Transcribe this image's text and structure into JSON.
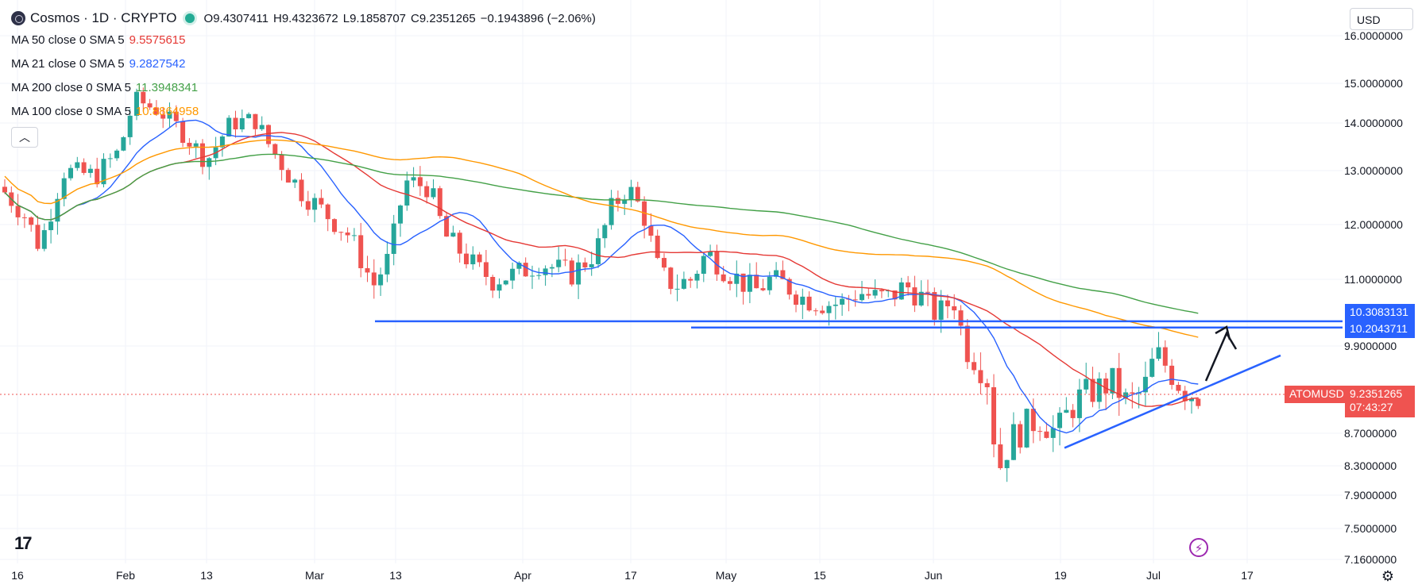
{
  "header": {
    "symbol": "Cosmos · 1D · CRYPTO",
    "open": "O9.4307411",
    "high": "H9.4323672",
    "low": "L9.1858707",
    "close": "C9.2351265",
    "change": "−0.1943896 (−2.06%)"
  },
  "indicators": [
    {
      "label": "MA 50 close 0 SMA 5",
      "value": "9.5575615",
      "color": "#e53935"
    },
    {
      "label": "MA 21 close 0 SMA 5",
      "value": "9.2827542",
      "color": "#2962ff"
    },
    {
      "label": "MA 200 close 0 SMA 5",
      "value": "11.3948341",
      "color": "#43a047"
    },
    {
      "label": "MA 100 close 0 SMA 5",
      "value": "10.8864958",
      "color": "#ff9800"
    }
  ],
  "currency": "USD",
  "price_label": {
    "symbol": "ATOMUSD",
    "price": "9.2351265",
    "countdown": "07:43:27"
  },
  "level_labels": [
    "10.3083131",
    "10.2043711"
  ],
  "chart_data": {
    "type": "candlestick",
    "x_ticks": [
      "16",
      "Feb",
      "13",
      "Mar",
      "13",
      "Apr",
      "17",
      "May",
      "15",
      "Jun",
      "19",
      "Jul",
      "17"
    ],
    "y_ticks": [
      "16.0000000",
      "15.0000000",
      "14.0000000",
      "13.0000000",
      "12.0000000",
      "11.0000000",
      "9.9000000",
      "8.7000000",
      "8.3000000",
      "7.9000000",
      "7.5000000",
      "7.1600000"
    ],
    "up_color": "#26a69a",
    "down_color": "#ef5350",
    "last_close": 9.2351265,
    "horizontal_levels": [
      10.3083131,
      10.2043711
    ],
    "trendline": {
      "from": [
        8.52
      ],
      "to": [
        9.77
      ],
      "color": "#2962ff"
    },
    "moving_averages": [
      "MA 50",
      "MA 21",
      "MA 200",
      "MA 100"
    ]
  }
}
